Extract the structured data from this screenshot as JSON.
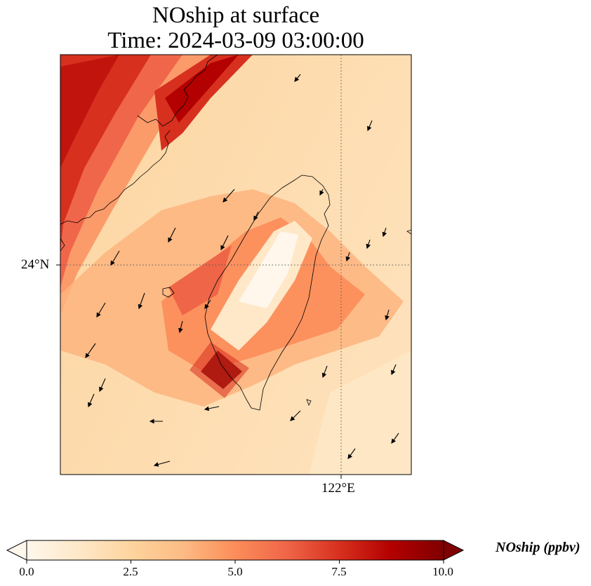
{
  "chart_data": {
    "type": "heatmap",
    "title_line1": "NOship at surface",
    "title_line2": "Time: 2024-03-09 03:00:00",
    "yticks": [
      {
        "value": 24,
        "label": "24°N"
      }
    ],
    "xticks": [
      {
        "value": 122,
        "label": "122°E"
      }
    ],
    "colorbar": {
      "label": "NOship (ppbv)",
      "min": 0.0,
      "max": 10.0,
      "extend": "both",
      "ticks": [
        "0.0",
        "2.5",
        "5.0",
        "7.5",
        "10.0"
      ],
      "colormap": [
        "#fff7ec",
        "#fee8c8",
        "#fdd49e",
        "#fdbb84",
        "#fc8d59",
        "#ef6548",
        "#d7301f",
        "#b30000",
        "#7f0000"
      ]
    },
    "grid": "dotted lines at labeled ticks",
    "features": [
      "coastlines",
      "wind vectors"
    ]
  }
}
